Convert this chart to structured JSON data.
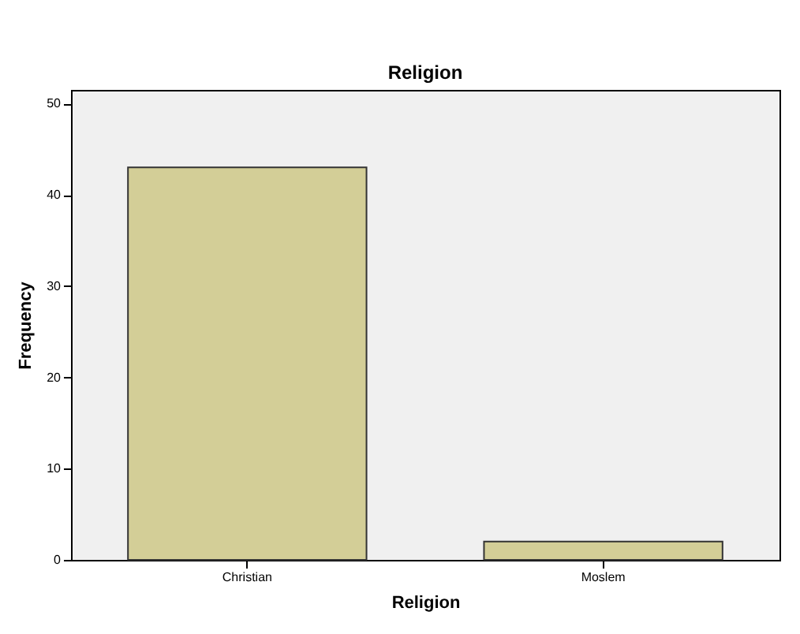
{
  "chart_data": {
    "type": "bar",
    "title": "Religion",
    "xlabel": "Religion",
    "ylabel": "Frequency",
    "categories": [
      "Christian",
      "Moslem"
    ],
    "values": [
      43,
      2
    ],
    "color": "#d3ce97",
    "ylim": [
      0,
      51.5
    ],
    "yticks": [
      0,
      10,
      20,
      30,
      40,
      50
    ]
  }
}
